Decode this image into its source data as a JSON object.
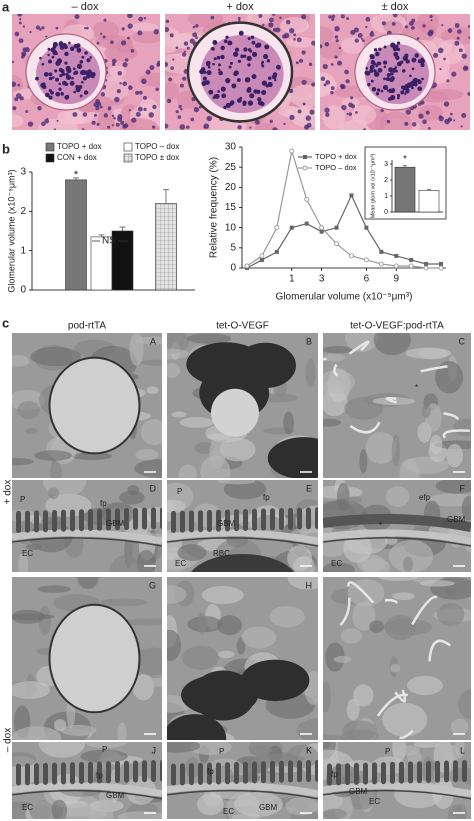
{
  "panel_a": {
    "label": "a",
    "titles": [
      "– dox",
      "+ dox",
      "± dox"
    ]
  },
  "panel_b": {
    "label": "b"
  },
  "chart_data": [
    {
      "type": "bar",
      "ylabel": "Glomerular volume (x10⁻⁵μm³)",
      "ylim": [
        0,
        3
      ],
      "yticks": [
        0,
        1,
        2,
        3
      ],
      "series": [
        {
          "name": "TOPO + dox",
          "color": "#777777",
          "values": [
            2.8
          ],
          "errors": [
            0.05
          ]
        },
        {
          "name": "TOPO – dox",
          "color": "#ffffff",
          "values": [
            1.35
          ],
          "errors": [
            0.05
          ]
        },
        {
          "name": "CON + dox",
          "color": "#111111",
          "values": [
            1.5
          ],
          "errors": [
            0.1
          ]
        },
        {
          "name": "TOPO ± dox",
          "color": "#d8d8d8",
          "hatch": true,
          "values": [
            2.2
          ],
          "errors": [
            0.35
          ]
        }
      ],
      "annotations": [
        "*",
        "NS"
      ]
    },
    {
      "type": "line",
      "ylabel": "Relative frequency (%)",
      "xlabel": "Glomerular volume (x10⁻⁵μm³)",
      "categories": [
        null,
        null,
        null,
        "1",
        null,
        "3",
        null,
        null,
        "6",
        null,
        "9",
        null,
        null,
        null
      ],
      "ylim": [
        0,
        30
      ],
      "yticks": [
        0,
        5,
        10,
        15,
        20,
        25,
        30
      ],
      "series": [
        {
          "name": "TOPO + dox",
          "color": "#666666",
          "marker": "square",
          "values": [
            0,
            2,
            4,
            10,
            11,
            9,
            10,
            18,
            10,
            4,
            3,
            2,
            1,
            1
          ]
        },
        {
          "name": "TOPO – dox",
          "color": "#999999",
          "marker": "circle",
          "values": [
            0.5,
            3,
            10,
            29,
            17,
            10,
            6,
            3,
            2,
            1,
            0.5,
            0.5,
            0,
            0
          ]
        }
      ]
    },
    {
      "type": "inset-bar",
      "ylabel": "Mean glom vol (x10⁻⁵μm³)",
      "ylim": [
        0,
        3
      ],
      "yticks": [
        0,
        1,
        2,
        3
      ],
      "values": [
        2.8,
        1.35
      ],
      "errors": [
        0.1,
        0.05
      ],
      "colors": [
        "#777777",
        "#ffffff"
      ],
      "annotations": [
        "*"
      ]
    }
  ],
  "panel_c": {
    "label": "c",
    "columns": [
      "pod-rtTA",
      "tet-O-VEGF",
      "tet-O-VEGF:pod-rtTA"
    ],
    "row_labels": [
      "+ dox",
      "– dox"
    ],
    "panels": [
      {
        "letter": "A",
        "labels": []
      },
      {
        "letter": "B",
        "labels": []
      },
      {
        "letter": "C",
        "labels": [
          "*"
        ]
      },
      {
        "letter": "D",
        "labels": [
          "P",
          "fp",
          "GBM",
          "EC"
        ]
      },
      {
        "letter": "E",
        "labels": [
          "P",
          "fp",
          "GBM",
          "EC",
          "RBC"
        ]
      },
      {
        "letter": "F",
        "labels": [
          "efp",
          "GBM",
          "*",
          "EC"
        ]
      },
      {
        "letter": "G",
        "labels": []
      },
      {
        "letter": "H",
        "labels": []
      },
      {
        "labels": []
      },
      {
        "letter": "J",
        "labels": [
          "P",
          "fp",
          "GBM",
          "EC"
        ]
      },
      {
        "letter": "K",
        "labels": [
          "P",
          "fp",
          "GBM",
          "EC"
        ]
      },
      {
        "letter": "L",
        "labels": [
          "P",
          "fp",
          "GBM",
          "EC"
        ]
      }
    ]
  }
}
